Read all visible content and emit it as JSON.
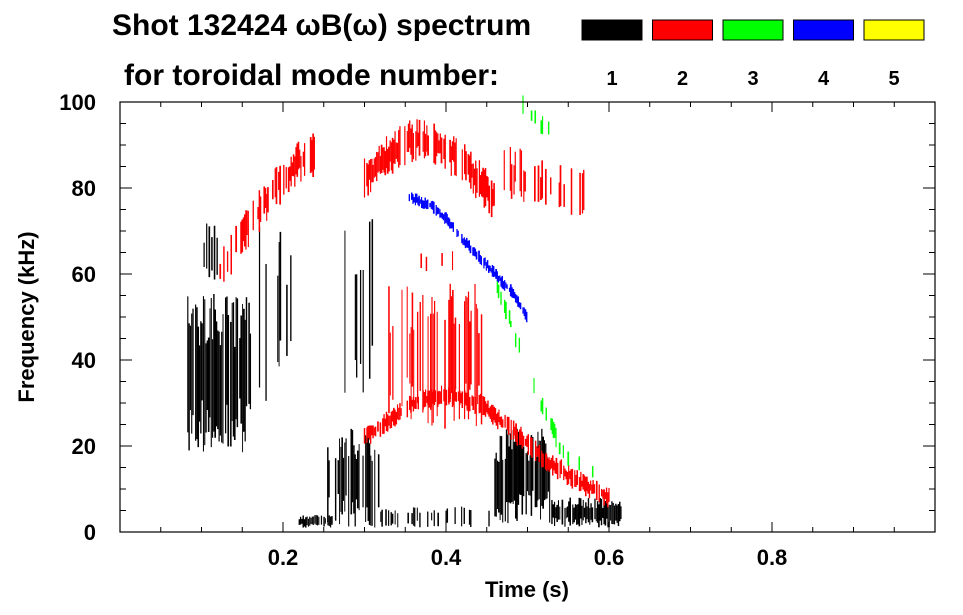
{
  "chart_data": {
    "type": "spectrogram",
    "title_line1": "Shot 132424 ωB(ω) spectrum",
    "title_line2": "for toroidal mode number:",
    "xlabel": "Time (s)",
    "ylabel": "Frequency (kHz)",
    "xlim": [
      0.0,
      1.0
    ],
    "ylim": [
      0,
      100
    ],
    "x_ticks": [
      0.2,
      0.4,
      0.6,
      0.8
    ],
    "x_tick_labels": [
      "0.2",
      "0.4",
      "0.6",
      "0.8"
    ],
    "y_ticks": [
      0,
      20,
      40,
      60,
      80,
      100
    ],
    "y_tick_labels": [
      "0",
      "20",
      "40",
      "60",
      "80",
      "100"
    ],
    "legend": [
      {
        "label": "1",
        "color": "#000000"
      },
      {
        "label": "2",
        "color": "#ff0000"
      },
      {
        "label": "3",
        "color": "#00ff00"
      },
      {
        "label": "4",
        "color": "#0000ff"
      },
      {
        "label": "5",
        "color": "#ffff00"
      }
    ],
    "series": [
      {
        "name": "n=1",
        "color": "#000000",
        "bands": [
          {
            "t0": 0.08,
            "t1": 0.16,
            "f_lo": 18,
            "f_hi": 56,
            "density": 0.85
          },
          {
            "t0": 0.1,
            "t1": 0.12,
            "f_lo": 58,
            "f_hi": 72,
            "density": 0.4
          },
          {
            "t0": 0.16,
            "t1": 0.21,
            "f_lo": 30,
            "f_hi": 72,
            "density": 0.35
          },
          {
            "t0": 0.22,
            "t1": 0.26,
            "f_lo": 1,
            "f_hi": 4,
            "density": 0.9
          },
          {
            "t0": 0.255,
            "t1": 0.32,
            "f_lo": 1,
            "f_hi": 24,
            "density": 0.75
          },
          {
            "t0": 0.26,
            "t1": 0.31,
            "f_lo": 30,
            "f_hi": 75,
            "density": 0.25
          },
          {
            "t0": 0.32,
            "t1": 0.46,
            "f_lo": 1,
            "f_hi": 6,
            "density": 0.3
          },
          {
            "t0": 0.46,
            "t1": 0.53,
            "f_lo": 2,
            "f_hi": 24,
            "density": 0.85
          },
          {
            "t0": 0.53,
            "t1": 0.615,
            "f_lo": 1,
            "f_hi": 8,
            "density": 0.85
          }
        ]
      },
      {
        "name": "n=2",
        "color": "#ff0000",
        "curves": [
          {
            "t": [
              0.12,
              0.14,
              0.16,
              0.18,
              0.2,
              0.22,
              0.24
            ],
            "f": [
              60,
              66,
              72,
              77,
              82,
              86,
              88
            ],
            "spread": 4,
            "density": 0.6
          },
          {
            "t": [
              0.3,
              0.32,
              0.34,
              0.36,
              0.38,
              0.4,
              0.42,
              0.44,
              0.46
            ],
            "f": [
              82,
              86,
              89,
              91,
              91,
              89,
              86,
              82,
              77
            ],
            "spread": 4,
            "density": 0.75
          },
          {
            "t": [
              0.47,
              0.49,
              0.51,
              0.53,
              0.55,
              0.57
            ],
            "f": [
              85,
              83,
              81,
              80,
              79,
              78
            ],
            "spread": 5,
            "density": 0.35
          },
          {
            "t": [
              0.3,
              0.33,
              0.36,
              0.4,
              0.44,
              0.48,
              0.52,
              0.56,
              0.6
            ],
            "f": [
              22,
              26,
              30,
              32,
              30,
              24,
              17,
              12,
              8
            ],
            "spread": 2,
            "density": 0.8
          }
        ],
        "bands": [
          {
            "t0": 0.33,
            "t1": 0.45,
            "f_lo": 24,
            "f_hi": 58,
            "density": 0.45
          },
          {
            "t0": 0.36,
            "t1": 0.41,
            "f_lo": 60,
            "f_hi": 66,
            "density": 0.2
          }
        ]
      },
      {
        "name": "n=3",
        "color": "#00ff00",
        "curves": [
          {
            "t": [
              0.46,
              0.48,
              0.5,
              0.52,
              0.54,
              0.56,
              0.58
            ],
            "f": [
              58,
              48,
              38,
              28,
              20,
              16,
              14
            ],
            "spread": 2,
            "density": 0.3
          },
          {
            "t": [
              0.49,
              0.51,
              0.53
            ],
            "f": [
              100,
              96,
              93
            ],
            "spread": 2,
            "density": 0.35
          }
        ]
      },
      {
        "name": "n=4",
        "color": "#0000ff",
        "curves": [
          {
            "t": [
              0.355,
              0.38,
              0.4,
              0.42,
              0.44,
              0.46,
              0.48,
              0.5
            ],
            "f": [
              78,
              76,
              73,
              68,
              64,
              60,
              56,
              50
            ],
            "spread": 1.2,
            "density": 0.9
          }
        ]
      },
      {
        "name": "n=5",
        "color": "#ffff00",
        "curves": []
      }
    ]
  }
}
